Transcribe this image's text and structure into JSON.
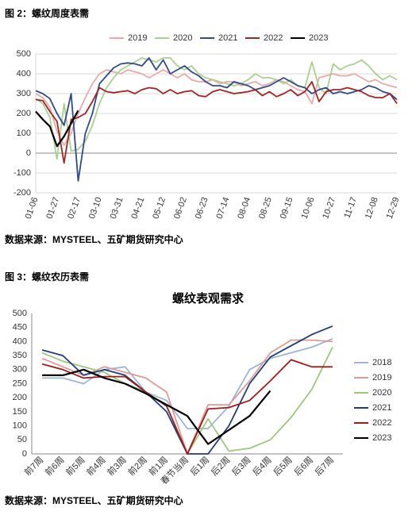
{
  "chart_data": [
    {
      "type": "line",
      "caption": "图 2：螺纹周度表需",
      "source": "数据来源：MYSTEEL、五矿期货研究中心",
      "categories": [
        "01-06",
        null,
        null,
        "01-27",
        null,
        null,
        "02-17",
        null,
        null,
        "03-10",
        null,
        null,
        "03-31",
        null,
        null,
        "04-21",
        null,
        null,
        "05-12",
        null,
        null,
        "06-02",
        null,
        null,
        "06-23",
        null,
        null,
        "07-14",
        null,
        null,
        "08-04",
        null,
        null,
        "08-25",
        null,
        null,
        "09-15",
        null,
        null,
        "10-06",
        null,
        null,
        "10-27",
        null,
        null,
        "11-17",
        null,
        null,
        "12-08",
        null,
        null,
        "12-29"
      ],
      "series": [
        {
          "name": "2019",
          "color": "#e8a9a8",
          "values": [
            300,
            280,
            230,
            110,
            40,
            100,
            200,
            280,
            350,
            400,
            420,
            410,
            400,
            420,
            410,
            400,
            380,
            400,
            420,
            400,
            380,
            400,
            370,
            360,
            360,
            370,
            350,
            360,
            360,
            340,
            350,
            360,
            340,
            350,
            370,
            360,
            340,
            320,
            310,
            250,
            380,
            390,
            400,
            390,
            390,
            400,
            380,
            360,
            370,
            350,
            340,
            330
          ]
        },
        {
          "name": "2020",
          "color": "#a9d18e",
          "values": [
            275,
            250,
            180,
            -30,
            250,
            10,
            20,
            60,
            140,
            250,
            330,
            380,
            420,
            440,
            460,
            480,
            470,
            460,
            480,
            480,
            440,
            420,
            440,
            400,
            380,
            370,
            360,
            350,
            340,
            350,
            370,
            400,
            380,
            380,
            370,
            350,
            370,
            340,
            330,
            460,
            330,
            300,
            450,
            420,
            440,
            450,
            470,
            440,
            400,
            370,
            390,
            370
          ]
        },
        {
          "name": "2021",
          "color": "#2f4b8c",
          "values": [
            315,
            300,
            275,
            200,
            140,
            300,
            -140,
            100,
            200,
            350,
            390,
            430,
            450,
            455,
            450,
            440,
            480,
            420,
            470,
            400,
            420,
            440,
            410,
            390,
            360,
            340,
            340,
            330,
            360,
            350,
            340,
            320,
            330,
            340,
            360,
            380,
            360,
            340,
            330,
            300,
            320,
            330,
            300,
            310,
            300,
            310,
            320,
            340,
            330,
            310,
            300,
            270
          ]
        },
        {
          "name": "2022",
          "color": "#a32424",
          "values": [
            270,
            265,
            210,
            160,
            -50,
            170,
            180,
            200,
            260,
            330,
            310,
            305,
            310,
            315,
            300,
            320,
            330,
            325,
            300,
            320,
            300,
            310,
            315,
            290,
            285,
            310,
            320,
            310,
            300,
            305,
            310,
            320,
            290,
            310,
            285,
            300,
            320,
            290,
            310,
            360,
            260,
            310,
            320,
            320,
            330,
            320,
            310,
            290,
            280,
            280,
            300,
            250
          ]
        },
        {
          "name": "2023",
          "color": "#000000",
          "values": [
            210,
            170,
            135,
            35,
            85,
            150,
            215,
            null,
            null,
            null,
            null,
            null,
            null,
            null,
            null,
            null,
            null,
            null,
            null,
            null,
            null,
            null,
            null,
            null,
            null,
            null,
            null,
            null,
            null,
            null,
            null,
            null,
            null,
            null,
            null,
            null,
            null,
            null,
            null,
            null,
            null,
            null,
            null,
            null,
            null,
            null,
            null,
            null,
            null,
            null,
            null,
            null
          ]
        }
      ],
      "ylim": [
        -200,
        500
      ],
      "yticks": [
        -200,
        -100,
        0,
        100,
        200,
        300,
        400,
        500
      ],
      "grid": true,
      "legend": "top"
    },
    {
      "type": "line",
      "caption": "图 3：螺纹农历表需",
      "title": "螺纹表观需求",
      "source": "数据来源：MYSTEEL、五矿期货研究中心",
      "categories": [
        "前7周",
        "前6周",
        "前5周",
        "前4周",
        "前3周",
        "前2周",
        "前1周",
        "春节当周",
        "后1周",
        "后2周",
        "后3周",
        "后4周",
        "后5周",
        "后6周",
        "后7周"
      ],
      "series": [
        {
          "name": "2018",
          "color": "#9db5d3",
          "values": [
            270,
            270,
            250,
            300,
            310,
            220,
            190,
            90,
            90,
            170,
            300,
            340,
            360,
            380,
            410
          ]
        },
        {
          "name": "2019",
          "color": "#e09a94",
          "values": [
            340,
            310,
            280,
            310,
            290,
            270,
            220,
            0,
            175,
            175,
            260,
            360,
            405,
            405,
            400
          ]
        },
        {
          "name": "2020",
          "color": "#9bc77a",
          "values": [
            360,
            330,
            310,
            290,
            250,
            220,
            170,
            0,
            125,
            10,
            20,
            50,
            130,
            230,
            380
          ]
        },
        {
          "name": "2021",
          "color": "#1f3d7a",
          "values": [
            370,
            350,
            280,
            300,
            280,
            220,
            150,
            0,
            0,
            100,
            250,
            345,
            385,
            425,
            455
          ]
        },
        {
          "name": "2022",
          "color": "#a01c1c",
          "values": [
            320,
            300,
            270,
            275,
            275,
            220,
            170,
            0,
            160,
            165,
            190,
            260,
            335,
            310,
            310
          ]
        },
        {
          "name": "2023",
          "color": "#000000",
          "values": [
            280,
            280,
            300,
            270,
            250,
            215,
            175,
            135,
            35,
            85,
            135,
            225,
            null,
            null,
            null
          ]
        }
      ],
      "ylim": [
        0,
        500
      ],
      "yticks": [
        0,
        50,
        100,
        150,
        200,
        250,
        300,
        350,
        400,
        450,
        500
      ],
      "grid": false,
      "legend": "right"
    }
  ]
}
